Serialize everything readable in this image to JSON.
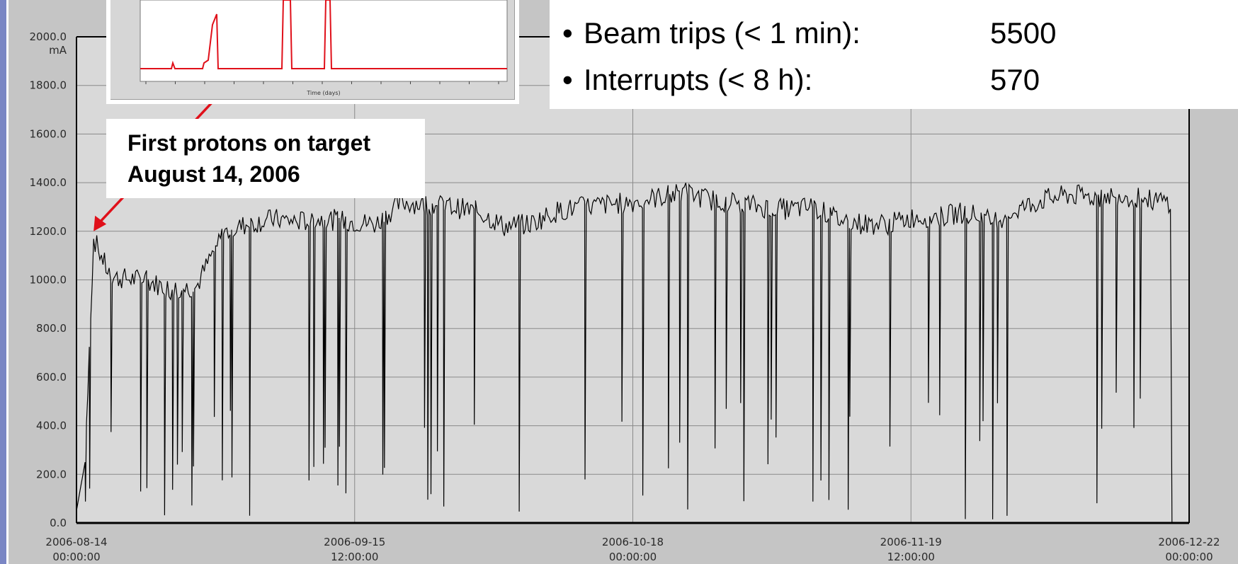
{
  "chart_data": {
    "type": "line",
    "title": "",
    "xlabel": "",
    "ylabel": "mA",
    "ylim": [
      0,
      2000
    ],
    "yticks": [
      "0.0",
      "200.0",
      "400.0",
      "600.0",
      "800.0",
      "1000.0",
      "1200.0",
      "1400.0",
      "1600.0",
      "1800.0",
      "2000.0"
    ],
    "xticks": [
      {
        "date": "2006-08-14",
        "time": "00:00:00"
      },
      {
        "date": "2006-09-15",
        "time": "12:00:00"
      },
      {
        "date": "2006-10-18",
        "time": "00:00:00"
      },
      {
        "date": "2006-11-19",
        "time": "12:00:00"
      },
      {
        "date": "2006-12-22",
        "time": "00:00:00"
      }
    ],
    "xlim": [
      "2006-08-14 00:00:00",
      "2006-12-22 00:00:00"
    ],
    "grid": true,
    "series": [
      {
        "color": "#000000",
        "x": [
          "2006-08-14",
          "2006-08-15",
          "2006-08-16",
          "2006-08-18",
          "2006-08-22",
          "2006-08-25",
          "2006-08-28",
          "2006-08-31",
          "2006-09-03",
          "2006-09-06",
          "2006-09-09",
          "2006-09-12",
          "2006-09-15",
          "2006-09-18",
          "2006-09-21",
          "2006-09-24",
          "2006-09-27",
          "2006-09-30",
          "2006-10-03",
          "2006-10-06",
          "2006-10-09",
          "2006-10-12",
          "2006-10-15",
          "2006-10-18",
          "2006-10-21",
          "2006-10-24",
          "2006-10-27",
          "2006-10-30",
          "2006-11-02",
          "2006-11-05",
          "2006-11-08",
          "2006-11-11",
          "2006-11-14",
          "2006-11-17",
          "2006-11-20",
          "2006-11-23",
          "2006-11-26",
          "2006-11-29",
          "2006-12-02",
          "2006-12-05",
          "2006-12-08",
          "2006-12-11",
          "2006-12-14",
          "2006-12-17",
          "2006-12-20"
        ],
        "values": [
          50,
          250,
          1170,
          1010,
          1000,
          960,
          970,
          1190,
          1230,
          1250,
          1240,
          1250,
          1240,
          1230,
          1320,
          1310,
          1300,
          1280,
          1220,
          1230,
          1280,
          1300,
          1310,
          1320,
          1340,
          1360,
          1330,
          1320,
          1300,
          1290,
          1300,
          1250,
          1230,
          1230,
          1260,
          1260,
          1280,
          1240,
          1290,
          1330,
          1350,
          1340,
          1350,
          1330,
          1320
        ]
      }
    ],
    "annotations": [
      {
        "lines": [
          "First protons on target",
          "August 14, 2006"
        ],
        "date": "2006-08-16",
        "value": 1200
      }
    ]
  },
  "stats": {
    "items": [
      {
        "bullet": "•",
        "label": "Beam trips (< 1 min):",
        "value": "5500"
      },
      {
        "bullet": "•",
        "label": "Interrupts (< 8 h):",
        "value": "570"
      }
    ]
  },
  "inset": {
    "xlabel": "Time (days)",
    "color": "#e0101a"
  },
  "colors": {
    "plot_bg": "#d9d9d9",
    "axis_frame": "#c5c5c5",
    "grid": "#8a8a8a",
    "trace": "#000000",
    "arrow": "#e0101a",
    "side_bar": "#7a86c4"
  }
}
